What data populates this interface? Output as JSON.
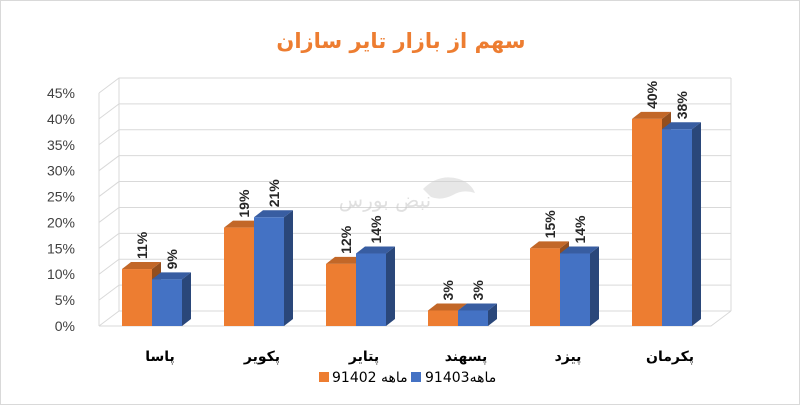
{
  "chart_data": {
    "type": "bar",
    "title": "سهم از بازار تایر سازان",
    "categories": [
      "پاسا",
      "پکویر",
      "پتایر",
      "پسهند",
      "پیزد",
      "پکرمان"
    ],
    "series": [
      {
        "name": "9ماهه 1402",
        "values": [
          11,
          19,
          12,
          3,
          15,
          40
        ],
        "labels": [
          "11%",
          "19%",
          "12%",
          "3%",
          "15%",
          "40%"
        ],
        "color": "#ed7d31"
      },
      {
        "name": "9ماهه1403",
        "values": [
          9,
          21,
          14,
          3,
          14,
          38
        ],
        "labels": [
          "9%",
          "21%",
          "14%",
          "3%",
          "14%",
          "38%"
        ],
        "color": "#4472c4"
      }
    ],
    "ylim": [
      0,
      45
    ],
    "yticks": [
      "0%",
      "5%",
      "10%",
      "15%",
      "20%",
      "25%",
      "30%",
      "35%",
      "40%",
      "45%"
    ],
    "grid": true,
    "three_d": true,
    "legend_position": "bottom",
    "watermark": "نبض بورس"
  }
}
